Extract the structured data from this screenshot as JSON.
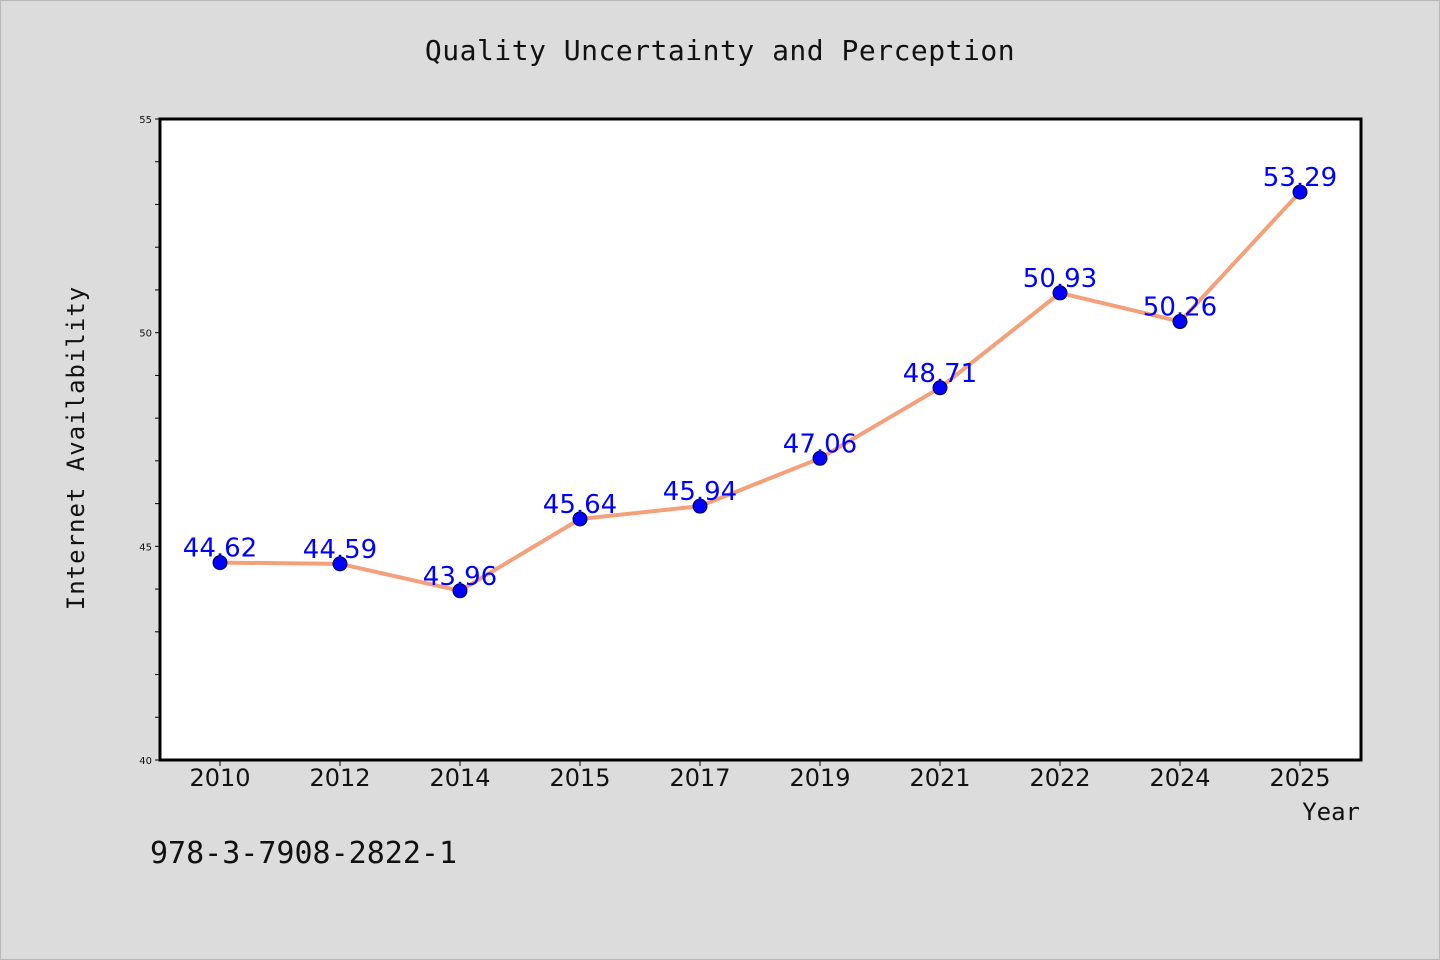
{
  "chart_data": {
    "type": "line",
    "title": "Quality Uncertainty and Perception",
    "xlabel": "Year",
    "ylabel": "Internet Availability",
    "categories": [
      "2010",
      "2012",
      "2014",
      "2015",
      "2017",
      "2019",
      "2021",
      "2022",
      "2024",
      "2025"
    ],
    "series": [
      {
        "values": [
          44.62,
          44.59,
          43.96,
          45.64,
          45.94,
          47.06,
          48.71,
          50.93,
          50.26,
          53.29
        ],
        "data_labels": [
          "44.62",
          "44.59",
          "43.96",
          "45.64",
          "45.94",
          "47.06",
          "48.71",
          "50.93",
          "50.26",
          "53.29"
        ]
      }
    ],
    "ylim": [
      40,
      55
    ],
    "yticks": [
      "40",
      "45",
      "50",
      "55"
    ],
    "line_color": "#f4a07a",
    "marker_color": "#0000ff",
    "label_color": "#0000ff",
    "grid": false
  },
  "footer": {
    "isbn": "978-3-7908-2822-1"
  },
  "colors": {
    "background": "#dcdcdc",
    "plot_background": "#ffffff"
  }
}
